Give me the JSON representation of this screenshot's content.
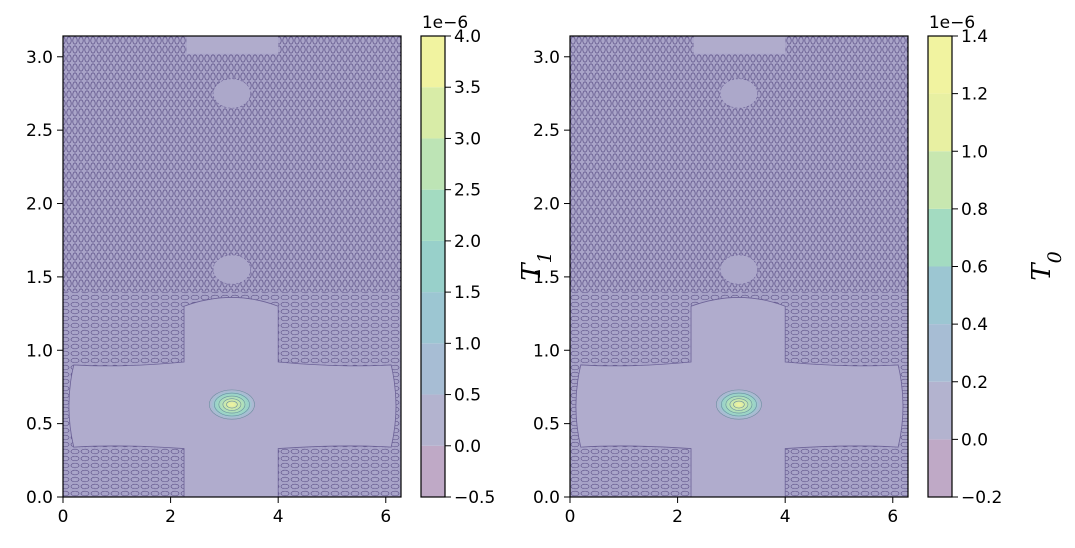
{
  "chart_data": [
    {
      "type": "heatmap",
      "plot_kind": "filled-contour",
      "title": "",
      "xlabel": "",
      "ylabel": "",
      "xlim": [
        0,
        6.283
      ],
      "ylim": [
        0,
        3.1416
      ],
      "xticks": [
        0,
        2,
        4,
        6
      ],
      "yticks": [
        0.0,
        0.5,
        1.0,
        1.5,
        2.0,
        2.5,
        3.0
      ],
      "ytick_labels": [
        "0.0",
        "0.5",
        "1.0",
        "1.5",
        "2.0",
        "2.5",
        "3.0"
      ],
      "colorbar": {
        "label": "T₁",
        "label_base": "T",
        "label_sub": "1",
        "offset_text": "1e−6",
        "levels": [
          -0.5,
          0.0,
          0.5,
          1.0,
          1.5,
          2.0,
          2.5,
          3.0,
          3.5,
          4.0
        ],
        "tick_labels": [
          "−0.5",
          "0.0",
          "0.5",
          "1.0",
          "1.5",
          "2.0",
          "2.5",
          "3.0",
          "3.5",
          "4.0"
        ],
        "colors": [
          "#bfa9c6",
          "#b3b3cf",
          "#a7bdd4",
          "#9cc6d2",
          "#98d0ca",
          "#a3dbc1",
          "#bde4b5",
          "#d8eca7",
          "#f1f3a0"
        ]
      },
      "peak": {
        "x": 3.14,
        "y": 0.63,
        "value": 4e-06
      },
      "background_value": 0.0,
      "grid": false
    },
    {
      "type": "heatmap",
      "plot_kind": "filled-contour",
      "title": "",
      "xlabel": "",
      "ylabel": "",
      "xlim": [
        0,
        6.283
      ],
      "ylim": [
        0,
        3.1416
      ],
      "xticks": [
        0,
        2,
        4,
        6
      ],
      "yticks": [
        0.0,
        0.5,
        1.0,
        1.5,
        2.0,
        2.5,
        3.0
      ],
      "ytick_labels": [
        "0.0",
        "0.5",
        "1.0",
        "1.5",
        "2.0",
        "2.5",
        "3.0"
      ],
      "colorbar": {
        "label": "T₀",
        "label_base": "T",
        "label_sub": "0",
        "offset_text": "1e−6",
        "levels": [
          -0.2,
          0.0,
          0.2,
          0.4,
          0.6,
          0.8,
          1.0,
          1.2,
          1.4
        ],
        "tick_labels": [
          "−0.2",
          "0.0",
          "0.2",
          "0.4",
          "0.6",
          "0.8",
          "1.0",
          "1.2",
          "1.4"
        ],
        "colors": [
          "#bfa9c6",
          "#b3b3cf",
          "#a7bdd4",
          "#9cc6d2",
          "#a3dbc1",
          "#c8e7b0",
          "#e8f0a2",
          "#f1f3a0"
        ]
      },
      "peak": {
        "x": 3.14,
        "y": 0.63,
        "value": 1.4e-06
      },
      "background_value": 0.0,
      "grid": false
    }
  ]
}
